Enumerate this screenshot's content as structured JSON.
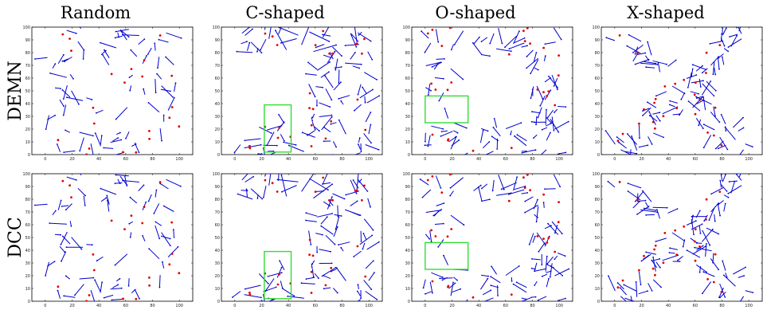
{
  "chart_data": {
    "type": "scatter",
    "columns": [
      "Random",
      "C-shaped",
      "O-shaped",
      "X-shaped"
    ],
    "rows": [
      "DEMN",
      "DCC"
    ],
    "xlim": [
      -10,
      110
    ],
    "ylim": [
      0,
      100
    ],
    "xticks": [
      0,
      20,
      40,
      60,
      80,
      100
    ],
    "yticks": [
      0,
      10,
      20,
      30,
      40,
      50,
      60,
      70,
      80,
      90,
      100
    ],
    "colors": {
      "segment": "#0000cc",
      "point": "#e00000",
      "highlight": "#33dd33"
    },
    "highlights": {
      "C-shaped": [
        22,
        2,
        42,
        39
      ],
      "O-shaped": [
        0,
        25,
        32,
        46
      ]
    }
  }
}
